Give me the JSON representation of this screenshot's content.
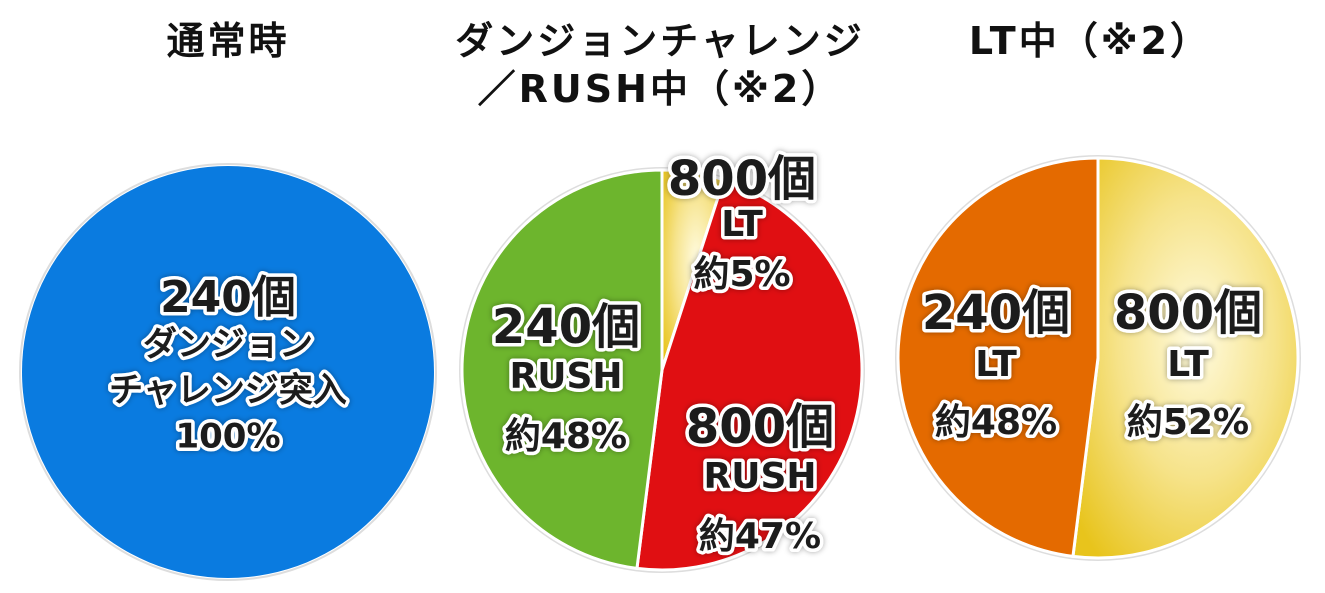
{
  "colors": {
    "blue": "#0a7be0",
    "green": "#6db52d",
    "red": "#e00f12",
    "orange": "#e46a00",
    "gold_light": "#fdf6c0",
    "gold_dark": "#e8c41c"
  },
  "chart_data": [
    {
      "type": "pie",
      "title": "通常時",
      "slices": [
        {
          "label_lines": [
            "240個",
            "ダンジョン",
            "チャレンジ突入",
            "100%"
          ],
          "value": 100,
          "color": "#0a7be0",
          "text_style": "outline"
        }
      ]
    },
    {
      "type": "pie",
      "title": "ダンジョンチャレンジ",
      "title_line2": "／RUSH中（※2）",
      "slices": [
        {
          "label_lines": [
            "800個",
            "LT",
            "約5%"
          ],
          "value": 5,
          "color": "gold",
          "text_style": "outline"
        },
        {
          "label_lines": [
            "800個",
            "RUSH",
            "約47%"
          ],
          "value": 47,
          "color": "#e00f12",
          "text_style": "outline"
        },
        {
          "label_lines": [
            "240個",
            "RUSH",
            "約48%"
          ],
          "value": 48,
          "color": "#6db52d",
          "text_style": "outline"
        }
      ]
    },
    {
      "type": "pie",
      "title": "LT中（※2）",
      "slices": [
        {
          "label_lines": [
            "800個",
            "LT",
            "約52%"
          ],
          "value": 52,
          "color": "gold",
          "text_style": "outline"
        },
        {
          "label_lines": [
            "240個",
            "LT",
            "約48%"
          ],
          "value": 48,
          "color": "#e46a00",
          "text_style": "outline"
        }
      ]
    }
  ]
}
